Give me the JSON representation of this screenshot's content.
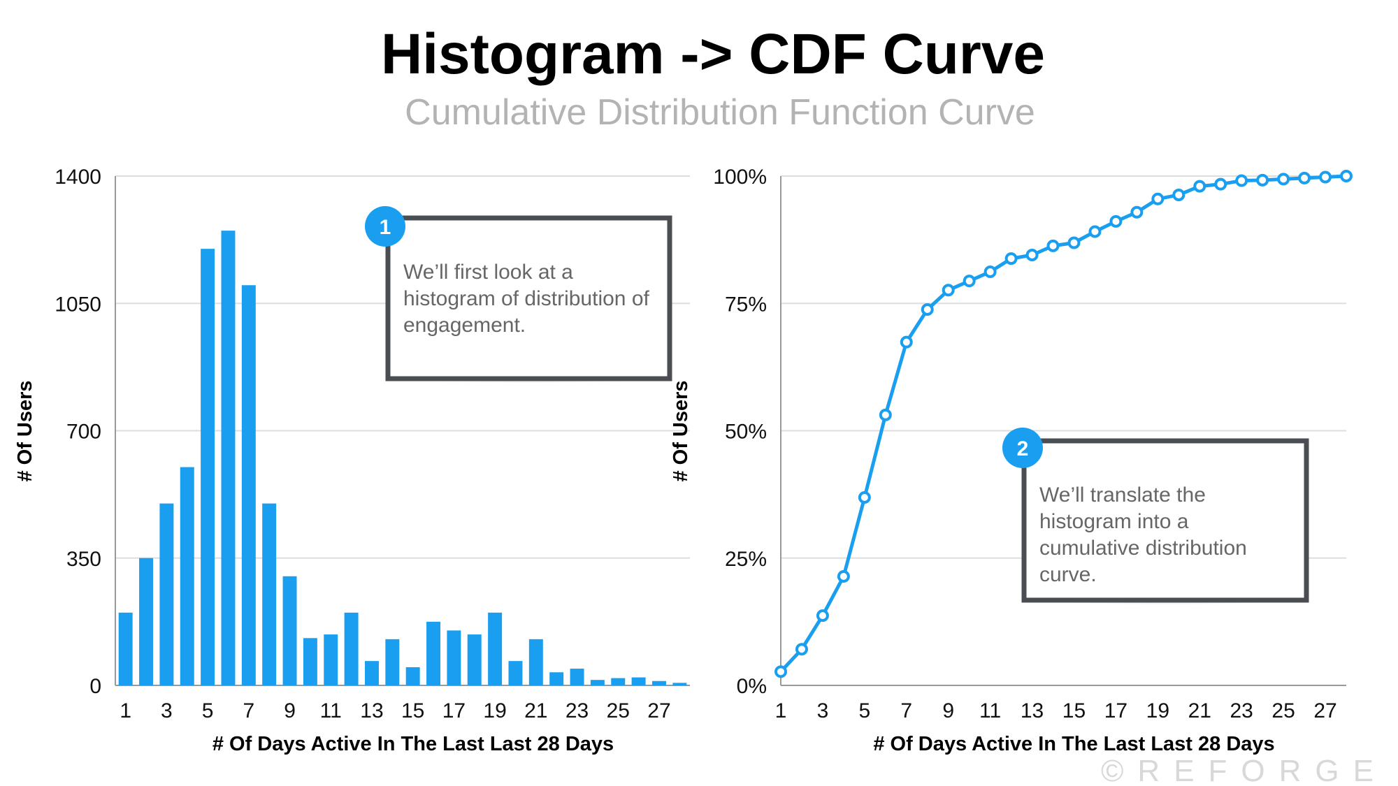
{
  "title": "Histogram -> CDF Curve",
  "subtitle": "Cumulative Distribution Function Curve",
  "watermark": "©REFORGE",
  "colors": {
    "bar": "#1a9ff0",
    "line": "#1a9ff0",
    "callout_border": "#4a4d52",
    "grid": "#dddddd"
  },
  "chart_data": [
    {
      "type": "bar",
      "title": "",
      "xlabel": "# Of Days Active In The Last Last 28 Days",
      "ylabel": "# Of Users",
      "x": [
        1,
        2,
        3,
        4,
        5,
        6,
        7,
        8,
        9,
        10,
        11,
        12,
        13,
        14,
        15,
        16,
        17,
        18,
        19,
        20,
        21,
        22,
        23,
        24,
        25,
        26,
        27,
        28
      ],
      "x_tick_labels": [
        "1",
        "3",
        "5",
        "7",
        "9",
        "11",
        "13",
        "15",
        "17",
        "19",
        "21",
        "23",
        "25",
        "27"
      ],
      "values": [
        200,
        350,
        500,
        600,
        1200,
        1250,
        1100,
        500,
        300,
        130,
        140,
        200,
        67,
        127,
        50,
        175,
        151,
        140,
        200,
        67,
        127,
        36,
        46,
        15,
        20,
        22,
        12,
        7
      ],
      "ylim": [
        0,
        1400
      ],
      "y_ticks": [
        0,
        350,
        700,
        1050,
        1400
      ],
      "y_tick_labels": [
        "0",
        "350",
        "700",
        "1050",
        "1400"
      ],
      "grid": true,
      "annotation": {
        "number": "1",
        "lines": [
          "We’ll first look at a",
          "histogram of distribution of",
          "engagement."
        ]
      }
    },
    {
      "type": "line",
      "title": "",
      "xlabel": "# Of Days Active In The Last Last 28 Days",
      "ylabel": "# Of Users",
      "x": [
        1,
        2,
        3,
        4,
        5,
        6,
        7,
        8,
        9,
        10,
        11,
        12,
        13,
        14,
        15,
        16,
        17,
        18,
        19,
        20,
        21,
        22,
        23,
        24,
        25,
        26,
        27,
        28
      ],
      "x_tick_labels": [
        "1",
        "3",
        "5",
        "7",
        "9",
        "11",
        "13",
        "15",
        "17",
        "19",
        "21",
        "23",
        "25",
        "27"
      ],
      "values": [
        2.7,
        7.1,
        13.7,
        21.4,
        36.9,
        53.1,
        67.4,
        73.8,
        77.6,
        79.4,
        81.2,
        83.8,
        84.5,
        86.3,
        86.9,
        89.1,
        91.1,
        92.9,
        95.5,
        96.3,
        98.0,
        98.4,
        99.1,
        99.2,
        99.4,
        99.6,
        99.8,
        100
      ],
      "ylim": [
        0,
        100
      ],
      "y_ticks": [
        0,
        25,
        50,
        75,
        100
      ],
      "y_tick_labels": [
        "0%",
        "25%",
        "50%",
        "75%",
        "100%"
      ],
      "grid": true,
      "annotation": {
        "number": "2",
        "lines": [
          "We’ll translate the",
          "histogram into a",
          "cumulative distribution",
          "curve."
        ]
      }
    }
  ]
}
